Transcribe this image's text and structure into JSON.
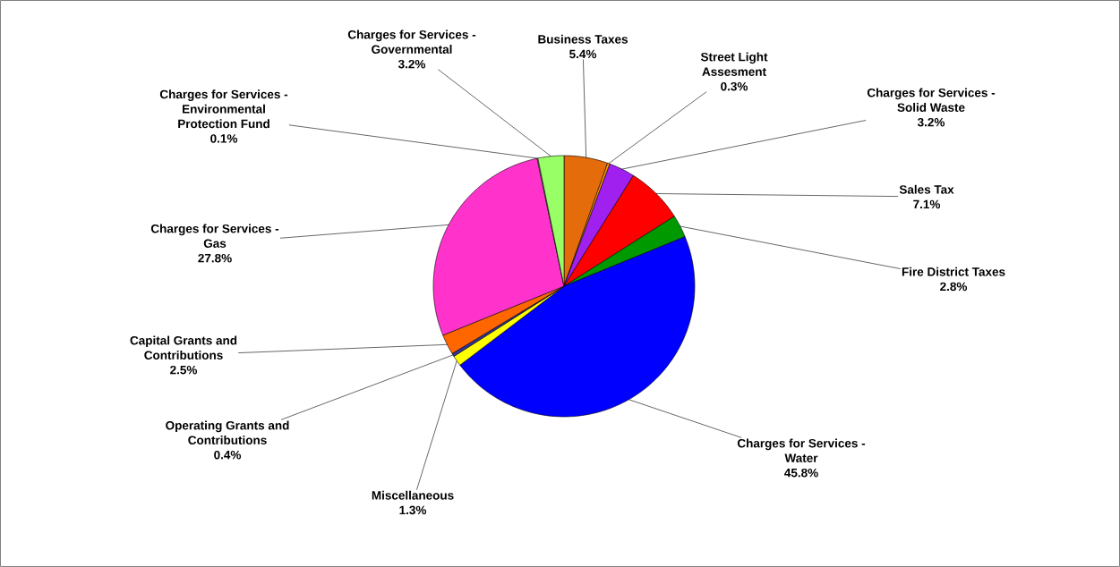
{
  "chart_data": {
    "type": "pie",
    "categories": [
      "Business Taxes",
      "Street Light Assesment",
      "Charges for Services - Solid Waste",
      "Sales Tax",
      "Fire District Taxes",
      "Charges for Services - Water",
      "Miscellaneous",
      "Operating Grants and Contributions",
      "Capital Grants and Contributions",
      "Charges for Services - Gas",
      "Charges for Services - Environmental Protection Fund",
      "Charges for Services - Governmental"
    ],
    "values": [
      5.4,
      0.3,
      3.2,
      7.1,
      2.8,
      45.8,
      1.3,
      0.4,
      2.5,
      27.8,
      0.1,
      3.2
    ],
    "value_labels": [
      "5.4%",
      "0.3%",
      "3.2%",
      "7.1%",
      "2.8%",
      "45.8%",
      "1.3%",
      "0.4%",
      "2.5%",
      "27.8%",
      "0.1%",
      "3.2%"
    ],
    "colors": [
      "#e46c0a",
      "#ff9900",
      "#a020f0",
      "#ff0000",
      "#009900",
      "#0000ff",
      "#ffff00",
      "#333399",
      "#ff6600",
      "#ff33cc",
      "#ccffcc",
      "#99ff66"
    ]
  }
}
